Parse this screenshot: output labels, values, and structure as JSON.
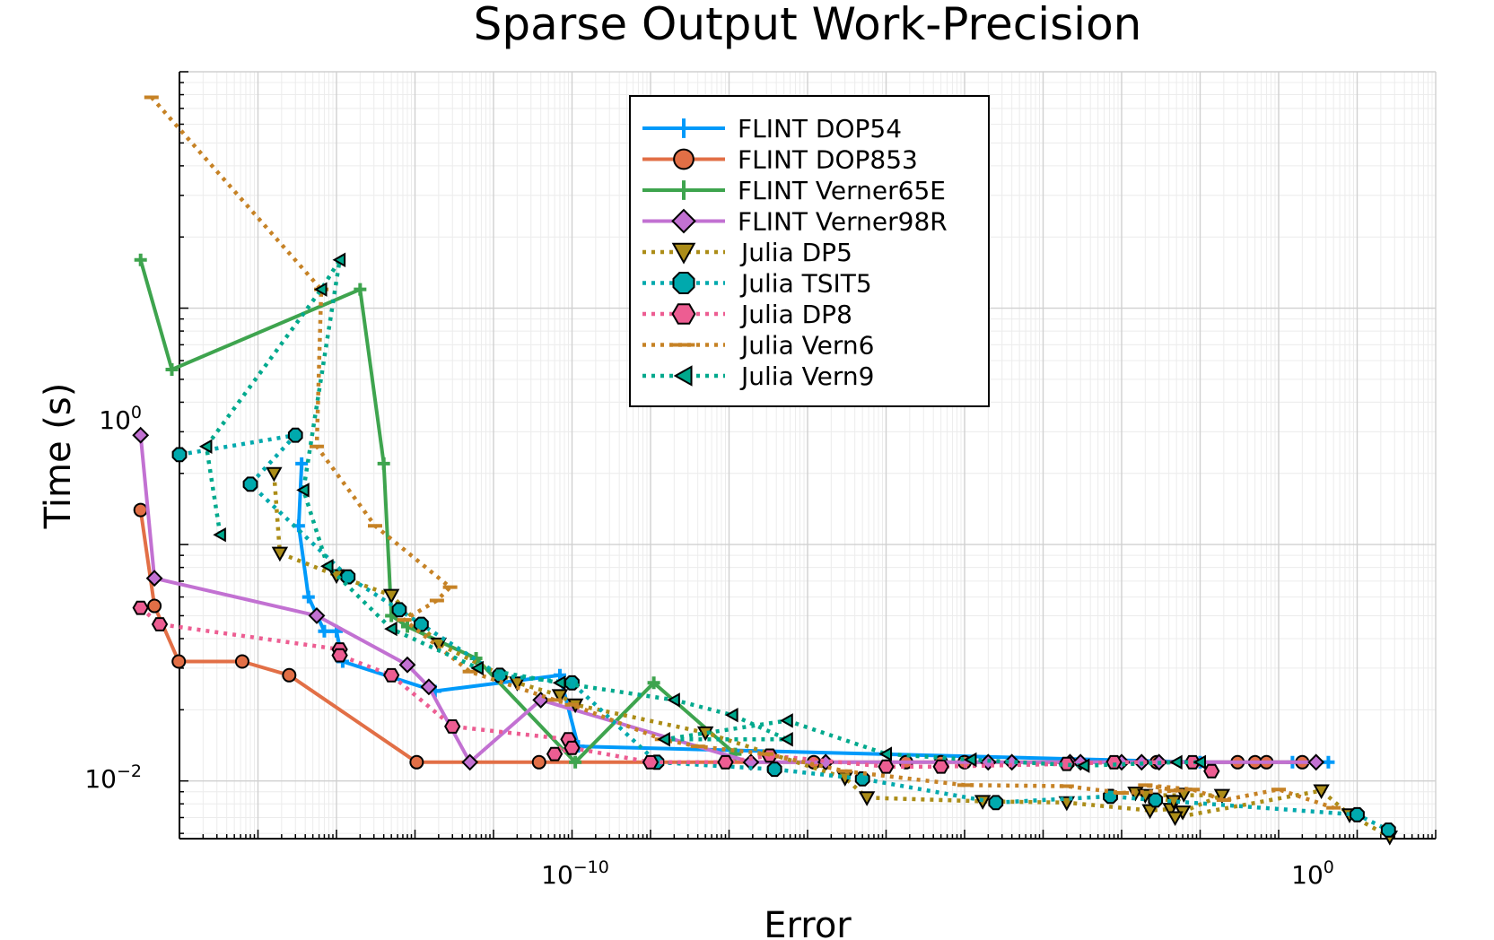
{
  "chart_data": {
    "type": "line",
    "title": "Sparse Output Work-Precision",
    "xlabel": "Error",
    "ylabel": "Time (s)",
    "xscale": "log",
    "yscale": "log",
    "xlim": [
      1e-15,
      10.0
    ],
    "ylim": [
      0.0057,
      10
    ],
    "xticks": [
      {
        "base": "10",
        "exp": "−10",
        "value": 1e-10
      },
      {
        "base": "10",
        "exp": "0",
        "value": 1
      }
    ],
    "yticks": [
      {
        "base": "10",
        "exp": "0",
        "value": 1
      },
      {
        "base": "10",
        "exp": "−2",
        "value": 0.01
      }
    ],
    "grid": true,
    "legend_position": "top-center",
    "series": [
      {
        "name": "FLINT DOP54",
        "color": "#009AFA",
        "line": "solid",
        "marker": "cross",
        "points": [
          [
            3.6e-14,
            0.22
          ],
          [
            3.3e-14,
            0.12
          ],
          [
            4.4e-14,
            0.06
          ],
          [
            7e-14,
            0.043
          ],
          [
            1e-13,
            0.043
          ],
          [
            1.2e-13,
            0.032
          ],
          [
            1.8e-12,
            0.024
          ],
          [
            7e-11,
            0.028
          ],
          [
            1.2e-10,
            0.014
          ],
          [
            0.01,
            0.012
          ],
          [
            0.15,
            0.012
          ],
          [
            0.43,
            0.012
          ]
        ]
      },
      {
        "name": "FLINT DOP853",
        "color": "#E26F46",
        "line": "solid",
        "marker": "circle",
        "points": [
          [
            3.2e-16,
            0.14
          ],
          [
            4.8e-16,
            0.055
          ],
          [
            9.8e-16,
            0.032
          ],
          [
            6.3e-15,
            0.032
          ],
          [
            2.5e-14,
            0.028
          ],
          [
            1.05e-12,
            0.012
          ],
          [
            3.8e-11,
            0.012
          ],
          [
            1.2e-07,
            0.012
          ],
          [
            5e-06,
            0.012
          ],
          [
            1e-05,
            0.012
          ],
          [
            1.8e-06,
            0.012
          ],
          [
            0.0028,
            0.012
          ],
          [
            0.05,
            0.012
          ],
          [
            0.03,
            0.012
          ],
          [
            0.07,
            0.012
          ],
          [
            0.2,
            0.012
          ]
        ]
      },
      {
        "name": "FLINT Verner65E",
        "color": "#3EA44E",
        "line": "solid",
        "marker": "cross",
        "points": [
          [
            3.2e-16,
            1.6
          ],
          [
            8e-16,
            0.55
          ],
          [
            2e-13,
            1.2
          ],
          [
            4e-13,
            0.22
          ],
          [
            5e-13,
            0.05
          ],
          [
            8e-13,
            0.045
          ],
          [
            6e-12,
            0.033
          ],
          [
            1.1e-10,
            0.012
          ],
          [
            1.1e-09,
            0.026
          ],
          [
            1.2e-08,
            0.013
          ]
        ]
      },
      {
        "name": "FLINT Verner98R",
        "color": "#C271D2",
        "line": "solid",
        "marker": "diamond",
        "points": [
          [
            3.2e-16,
            0.29
          ],
          [
            4.8e-16,
            0.072
          ],
          [
            5.6e-14,
            0.05
          ],
          [
            8e-13,
            0.031
          ],
          [
            1.5e-12,
            0.025
          ],
          [
            5e-12,
            0.012
          ],
          [
            4e-11,
            0.022
          ],
          [
            1.9e-08,
            0.012
          ],
          [
            1.7e-07,
            0.012
          ],
          [
            2e-05,
            0.012
          ],
          [
            0.00022,
            0.012
          ],
          [
            0.0003,
            0.012
          ],
          [
            4e-05,
            0.012
          ],
          [
            0.001,
            0.012
          ],
          [
            0.003,
            0.012
          ],
          [
            0.0018,
            0.012
          ],
          [
            0.3,
            0.012
          ]
        ]
      },
      {
        "name": "Julia DP5",
        "color": "#AC8D18",
        "line": "dotted",
        "marker": "triangle-down",
        "points": [
          [
            1.6e-14,
            0.2
          ],
          [
            1.9e-14,
            0.092
          ],
          [
            1e-13,
            0.074
          ],
          [
            5e-13,
            0.061
          ],
          [
            2e-12,
            0.038
          ],
          [
            2e-11,
            0.026
          ],
          [
            7e-11,
            0.023
          ],
          [
            1.1e-10,
            0.021
          ],
          [
            5e-09,
            0.016
          ],
          [
            3e-07,
            0.0103
          ],
          [
            5.7e-07,
            0.0085
          ],
          [
            1.7e-05,
            0.0082
          ],
          [
            0.0002,
            0.0081
          ],
          [
            0.0023,
            0.0075
          ],
          [
            0.0042,
            0.0076
          ],
          [
            0.0062,
            0.0088
          ],
          [
            0.0046,
            0.0082
          ],
          [
            0.0015,
            0.0089
          ],
          [
            0.002,
            0.0087
          ],
          [
            0.019,
            0.0087
          ],
          [
            0.006,
            0.0074
          ],
          [
            0.0048,
            0.007
          ],
          [
            0.35,
            0.0091
          ],
          [
            0.8,
            0.0072
          ],
          [
            2.6,
            0.0058
          ]
        ]
      },
      {
        "name": "Julia TSIT5",
        "color": "#00A9AD",
        "line": "dotted",
        "marker": "octagon",
        "points": [
          [
            1e-15,
            0.24
          ],
          [
            3e-14,
            0.29
          ],
          [
            8e-15,
            0.18
          ],
          [
            1.4e-13,
            0.073
          ],
          [
            6.3e-13,
            0.053
          ],
          [
            1.2e-12,
            0.046
          ],
          [
            1.2e-11,
            0.028
          ],
          [
            1e-10,
            0.026
          ],
          [
            1.2e-09,
            0.012
          ],
          [
            3.8e-08,
            0.0112
          ],
          [
            5e-07,
            0.0102
          ],
          [
            2.5e-05,
            0.0081
          ],
          [
            0.00072,
            0.0086
          ],
          [
            0.0027,
            0.0083
          ],
          [
            1.0,
            0.0072
          ],
          [
            2.5,
            0.0062
          ]
        ]
      },
      {
        "name": "Julia DP8",
        "color": "#ED5D92",
        "line": "dotted",
        "marker": "hexagon",
        "points": [
          [
            3.2e-16,
            0.054
          ],
          [
            5.6e-16,
            0.046
          ],
          [
            1.1e-13,
            0.036
          ],
          [
            1.1e-13,
            0.034
          ],
          [
            5e-13,
            0.028
          ],
          [
            3e-12,
            0.017
          ],
          [
            9e-11,
            0.015
          ],
          [
            6e-11,
            0.013
          ],
          [
            1e-10,
            0.0138
          ],
          [
            1e-09,
            0.012
          ],
          [
            9e-09,
            0.012
          ],
          [
            3.3e-08,
            0.0128
          ],
          [
            1e-06,
            0.0115
          ],
          [
            5e-06,
            0.0115
          ],
          [
            0.0002,
            0.0118
          ],
          [
            0.0008,
            0.012
          ],
          [
            0.008,
            0.012
          ],
          [
            0.014,
            0.011
          ]
        ]
      },
      {
        "name": "Julia Vern6",
        "color": "#C68225",
        "line": "dotted",
        "marker": "dash",
        "points": [
          [
            4.4e-16,
            7.8
          ],
          [
            6.4e-14,
            1.2
          ],
          [
            5.6e-14,
            0.26
          ],
          [
            3.1e-13,
            0.12
          ],
          [
            2.8e-12,
            0.066
          ],
          [
            1.9e-12,
            0.058
          ],
          [
            7.3e-13,
            0.048
          ],
          [
            5e-12,
            0.029
          ],
          [
            6e-11,
            0.022
          ],
          [
            1e-10,
            0.021
          ],
          [
            1.4e-09,
            0.015
          ],
          [
            4e-09,
            0.014
          ],
          [
            3e-08,
            0.013
          ],
          [
            3e-07,
            0.011
          ],
          [
            1e-05,
            0.0096
          ],
          [
            0.0002,
            0.0095
          ],
          [
            0.001,
            0.0089
          ],
          [
            0.005,
            0.0091
          ],
          [
            0.002,
            0.0096
          ],
          [
            0.008,
            0.0092
          ],
          [
            0.02,
            0.0083
          ],
          [
            0.1,
            0.0092
          ],
          [
            0.5,
            0.0077
          ]
        ]
      },
      {
        "name": "Julia Vern9",
        "color": "#00A98D",
        "line": "dotted",
        "marker": "triangle-left",
        "points": [
          [
            3.3e-15,
            0.11
          ],
          [
            2.2e-15,
            0.26
          ],
          [
            6.4e-14,
            1.2
          ],
          [
            1.1e-13,
            1.6
          ],
          [
            3.8e-14,
            0.17
          ],
          [
            7.7e-14,
            0.081
          ],
          [
            5e-13,
            0.044
          ],
          [
            6.3e-12,
            0.03
          ],
          [
            7e-11,
            0.026
          ],
          [
            2e-09,
            0.022
          ],
          [
            1.1e-08,
            0.019
          ],
          [
            5.5e-08,
            0.015
          ],
          [
            1.5e-09,
            0.015
          ],
          [
            5.5e-08,
            0.018
          ],
          [
            1e-06,
            0.013
          ],
          [
            1.2e-05,
            0.0123
          ],
          [
            0.00033,
            0.0116
          ],
          [
            0.005,
            0.012
          ],
          [
            0.01,
            0.012
          ]
        ]
      }
    ]
  }
}
